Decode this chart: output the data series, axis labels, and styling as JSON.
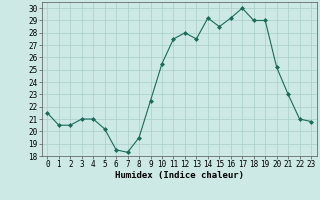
{
  "x": [
    0,
    1,
    2,
    3,
    4,
    5,
    6,
    7,
    8,
    9,
    10,
    11,
    12,
    13,
    14,
    15,
    16,
    17,
    18,
    19,
    20,
    21,
    22,
    23
  ],
  "y": [
    21.5,
    20.5,
    20.5,
    21.0,
    21.0,
    20.2,
    18.5,
    18.3,
    19.5,
    22.5,
    25.5,
    27.5,
    28.0,
    27.5,
    29.2,
    28.5,
    29.2,
    30.0,
    29.0,
    29.0,
    25.2,
    23.0,
    21.0,
    20.8
  ],
  "line_color": "#1a6b5a",
  "marker": "D",
  "marker_size": 2.0,
  "bg_color": "#cce9e5",
  "grid_color": "#aacfc9",
  "xlabel": "Humidex (Indice chaleur)",
  "ylim": [
    18,
    30.5
  ],
  "xlim": [
    -0.5,
    23.5
  ],
  "yticks": [
    18,
    19,
    20,
    21,
    22,
    23,
    24,
    25,
    26,
    27,
    28,
    29,
    30
  ],
  "xticks": [
    0,
    1,
    2,
    3,
    4,
    5,
    6,
    7,
    8,
    9,
    10,
    11,
    12,
    13,
    14,
    15,
    16,
    17,
    18,
    19,
    20,
    21,
    22,
    23
  ],
  "tick_fontsize": 5.5,
  "xlabel_fontsize": 6.5
}
